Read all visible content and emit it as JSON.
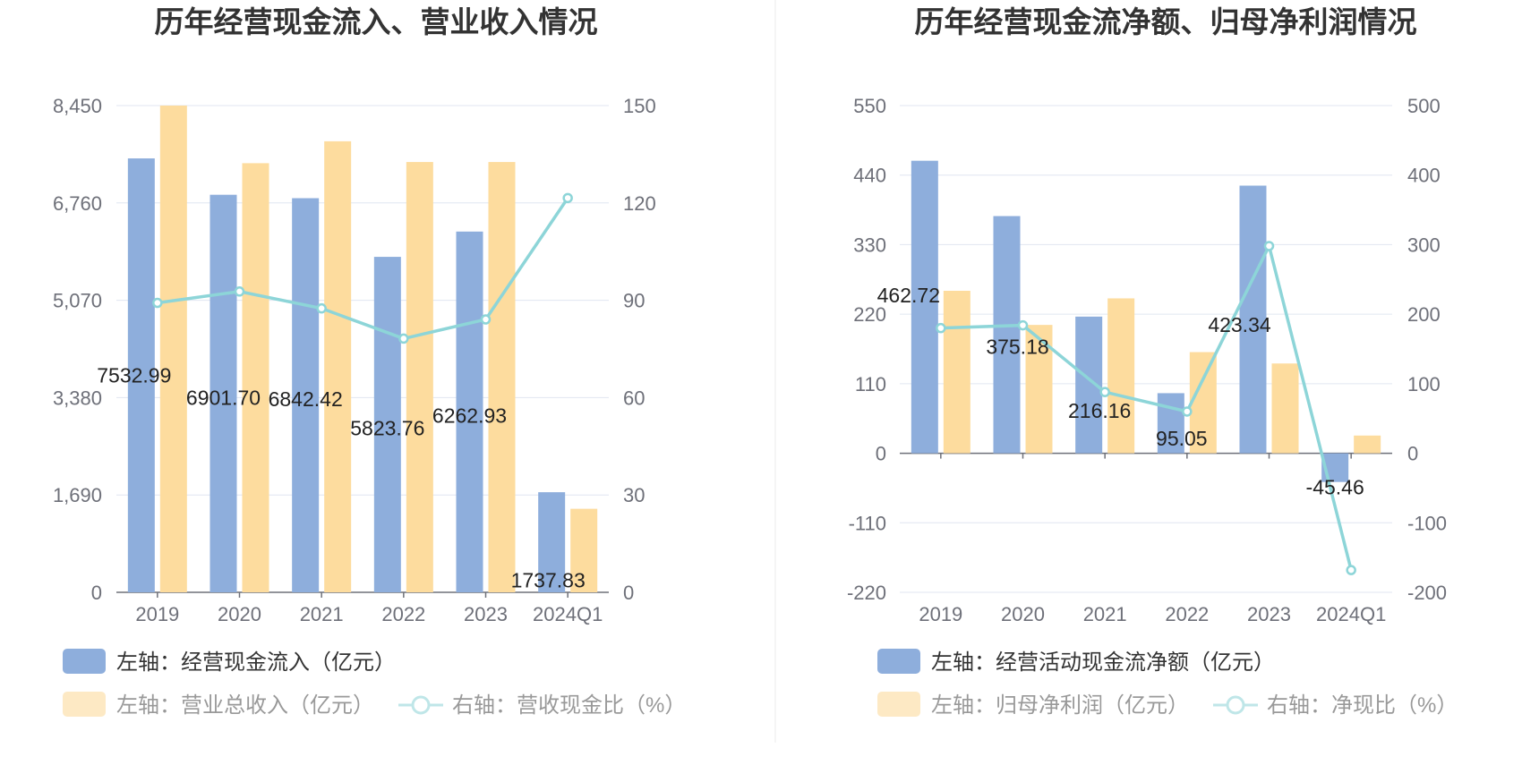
{
  "chart_data": [
    {
      "type": "bar",
      "title": "历年经营现金流入、营业收入情况",
      "categories": [
        "2019",
        "2020",
        "2021",
        "2022",
        "2023",
        "2024Q1"
      ],
      "left_axis": {
        "min": 0,
        "max": 8450,
        "ticks": [
          "0",
          "1,690",
          "3,380",
          "5,070",
          "6,760",
          "8,450"
        ]
      },
      "right_axis": {
        "min": 0,
        "max": 150,
        "ticks": [
          "0",
          "30",
          "60",
          "90",
          "120",
          "150"
        ]
      },
      "series": [
        {
          "name": "左轴：经营现金流入（亿元）",
          "kind": "bar",
          "axis": "left",
          "color": "#8eaedc",
          "values": [
            7532.99,
            6901.7,
            6842.42,
            5823.76,
            6262.93,
            1737.83
          ],
          "labels": [
            "7532.99",
            "6901.70",
            "6842.42",
            "5823.76",
            "6262.93",
            "1737.83"
          ]
        },
        {
          "name": "左轴：营业总收入（亿元）",
          "kind": "bar",
          "axis": "left",
          "color": "#fddc9e",
          "values": [
            8450,
            7450,
            7830,
            7470,
            7470,
            1450
          ]
        },
        {
          "name": "右轴：营收现金比（%）",
          "kind": "line",
          "axis": "right",
          "color": "#8dd5d8",
          "values": [
            89.2,
            92.7,
            87.5,
            78.2,
            84.1,
            121.5
          ]
        }
      ],
      "legend_position": "bottom-left",
      "grid": true
    },
    {
      "type": "bar",
      "title": "历年经营现金流净额、归母净利润情况",
      "categories": [
        "2019",
        "2020",
        "2021",
        "2022",
        "2023",
        "2024Q1"
      ],
      "left_axis": {
        "min": -220,
        "max": 550,
        "ticks": [
          "-220",
          "-110",
          "0",
          "110",
          "220",
          "330",
          "440",
          "550"
        ]
      },
      "right_axis": {
        "min": -200,
        "max": 500,
        "ticks": [
          "-200",
          "-100",
          "0",
          "100",
          "200",
          "300",
          "400",
          "500"
        ]
      },
      "series": [
        {
          "name": "左轴：经营活动现金流净额（亿元）",
          "kind": "bar",
          "axis": "left",
          "color": "#8eaedc",
          "values": [
            462.72,
            375.18,
            216.16,
            95.05,
            423.34,
            -45.46
          ],
          "labels": [
            "462.72",
            "375.18",
            "216.16",
            "95.05",
            "423.34",
            "-45.46"
          ]
        },
        {
          "name": "左轴：归母净利润（亿元）",
          "kind": "bar",
          "axis": "left",
          "color": "#fddc9e",
          "values": [
            257,
            203,
            245,
            160,
            142,
            28
          ]
        },
        {
          "name": "右轴：净现比（%）",
          "kind": "line",
          "axis": "right",
          "color": "#8dd5d8",
          "values": [
            180,
            184,
            88,
            60,
            298,
            -168
          ]
        }
      ],
      "legend_position": "bottom-left",
      "grid": true
    }
  ]
}
